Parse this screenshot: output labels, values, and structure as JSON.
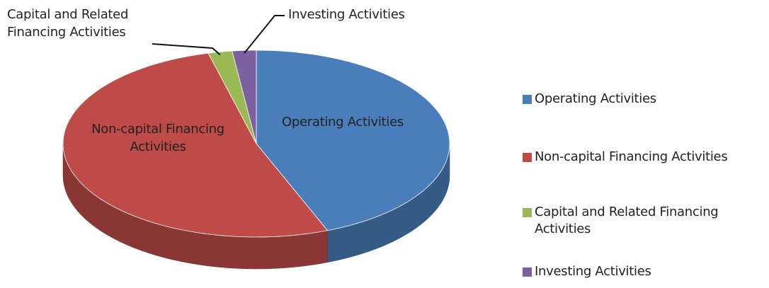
{
  "chart_data": {
    "type": "pie3d",
    "categories": [
      "Operating Activities",
      "Non-capital Financing Activities",
      "Capital and Related Financing Activities",
      "Investing Activities"
    ],
    "values": [
      44,
      52,
      2,
      2
    ],
    "colors": [
      "#4a7ebb",
      "#be4b48",
      "#98b954",
      "#7d60a0"
    ],
    "legend": "right"
  }
}
